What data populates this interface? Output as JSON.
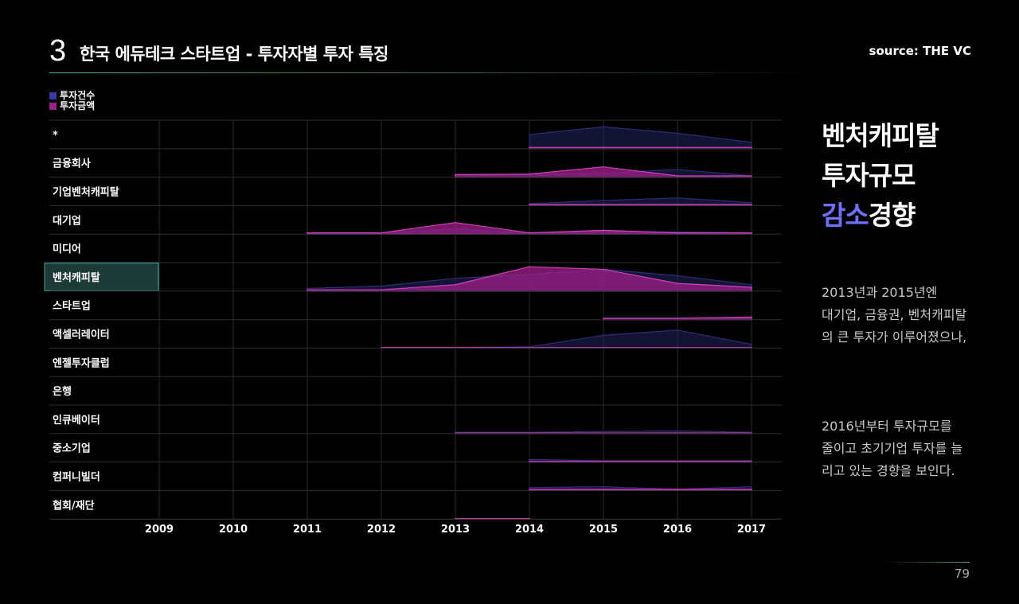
{
  "header": {
    "section_number": "3",
    "title": "한국 에듀테크 스타트업 - 투자자별 투자 특징",
    "source": "source: THE VC"
  },
  "side": {
    "title_line1": "벤처캐피탈",
    "title_line2": "투자규모",
    "title_line3_accent": "감소",
    "title_line3_rest": "경향",
    "description_1": "2013년과 2015년엔\n대기업, 금융권, 벤처캐피탈\n의 큰 투자가 이루어졌으나,",
    "description_2": "2016년부터 투자규모를\n줄이고 초기기업 투자를 늘\n리고 있는 경향을 보인다."
  },
  "footer": {
    "page_number": "79"
  },
  "chart_data": {
    "type": "area",
    "title": "",
    "xlabel": "",
    "ylabel": "",
    "x": [
      2009,
      2010,
      2011,
      2012,
      2013,
      2014,
      2015,
      2016,
      2017
    ],
    "legend": [
      {
        "name": "투자건수",
        "color": "#3a3aa8"
      },
      {
        "name": "투자금액",
        "color": "#a0208a"
      }
    ],
    "highlighted_category": "벤처캐피탈",
    "categories": [
      {
        "name": "*",
        "count": [
          null,
          null,
          null,
          null,
          null,
          0.55,
          0.85,
          0.6,
          0.25
        ],
        "amount": [
          null,
          null,
          null,
          null,
          null,
          0.05,
          0.05,
          0.05,
          0.05
        ]
      },
      {
        "name": "금융회사",
        "count": [
          null,
          null,
          null,
          null,
          0.05,
          0.1,
          0.15,
          0.3,
          0.05
        ],
        "amount": [
          null,
          null,
          null,
          null,
          0.1,
          0.12,
          0.4,
          0.05,
          0.05
        ]
      },
      {
        "name": "기업벤처캐피탈",
        "count": [
          null,
          null,
          null,
          null,
          null,
          0.08,
          0.2,
          0.3,
          0.12
        ],
        "amount": [
          null,
          null,
          null,
          null,
          null,
          0.05,
          0.05,
          0.05,
          0.05
        ]
      },
      {
        "name": "대기업",
        "count": [
          null,
          null,
          0.05,
          0.05,
          0.2,
          0.05,
          0.1,
          0.08,
          0.05
        ],
        "amount": [
          null,
          null,
          0.05,
          0.05,
          0.45,
          0.05,
          0.15,
          0.05,
          0.05
        ]
      },
      {
        "name": "미디어",
        "count": [
          null,
          null,
          null,
          null,
          null,
          null,
          null,
          null,
          null
        ],
        "amount": [
          null,
          null,
          null,
          null,
          null,
          null,
          null,
          null,
          null
        ]
      },
      {
        "name": "벤처캐피탈",
        "count": [
          null,
          null,
          0.1,
          0.2,
          0.5,
          0.65,
          0.85,
          0.6,
          0.25
        ],
        "amount": [
          null,
          null,
          0.05,
          0.05,
          0.25,
          0.95,
          0.85,
          0.3,
          0.15
        ]
      },
      {
        "name": "스타트업",
        "count": [
          null,
          null,
          null,
          null,
          null,
          null,
          0.05,
          0.05,
          0.05
        ],
        "amount": [
          null,
          null,
          null,
          null,
          null,
          null,
          0.05,
          0.05,
          0.1
        ]
      },
      {
        "name": "액셀러레이터",
        "count": [
          null,
          null,
          null,
          0.02,
          0.02,
          0.05,
          0.5,
          0.7,
          0.15
        ],
        "amount": [
          null,
          null,
          null,
          0.02,
          0.02,
          0.02,
          0.02,
          0.02,
          0.02
        ]
      },
      {
        "name": "엔젤투자클럽",
        "count": [
          null,
          null,
          null,
          null,
          null,
          null,
          null,
          null,
          null
        ],
        "amount": [
          null,
          null,
          null,
          null,
          null,
          null,
          null,
          null,
          null
        ]
      },
      {
        "name": "은행",
        "count": [
          null,
          null,
          null,
          null,
          null,
          null,
          null,
          null,
          null
        ],
        "amount": [
          null,
          null,
          null,
          null,
          null,
          null,
          null,
          null,
          null
        ]
      },
      {
        "name": "인큐베이터",
        "count": [
          null,
          null,
          null,
          null,
          0.05,
          0.05,
          0.08,
          0.1,
          0.05
        ],
        "amount": [
          null,
          null,
          null,
          null,
          0.02,
          0.02,
          0.02,
          0.02,
          0.02
        ]
      },
      {
        "name": "중소기업",
        "count": [
          null,
          null,
          null,
          null,
          null,
          0.1,
          0.05,
          0.05,
          0.05
        ],
        "amount": [
          null,
          null,
          null,
          null,
          null,
          0.03,
          0.03,
          0.03,
          0.03
        ]
      },
      {
        "name": "컴퍼니빌더",
        "count": [
          null,
          null,
          null,
          null,
          null,
          0.12,
          0.15,
          0.05,
          0.15
        ],
        "amount": [
          null,
          null,
          null,
          null,
          null,
          0.05,
          0.05,
          0.05,
          0.05
        ]
      },
      {
        "name": "협회/재단",
        "count": [
          null,
          null,
          null,
          null,
          0.02,
          0.02,
          null,
          null,
          null
        ],
        "amount": [
          null,
          null,
          null,
          null,
          0.02,
          0.02,
          null,
          null,
          null
        ]
      }
    ]
  }
}
